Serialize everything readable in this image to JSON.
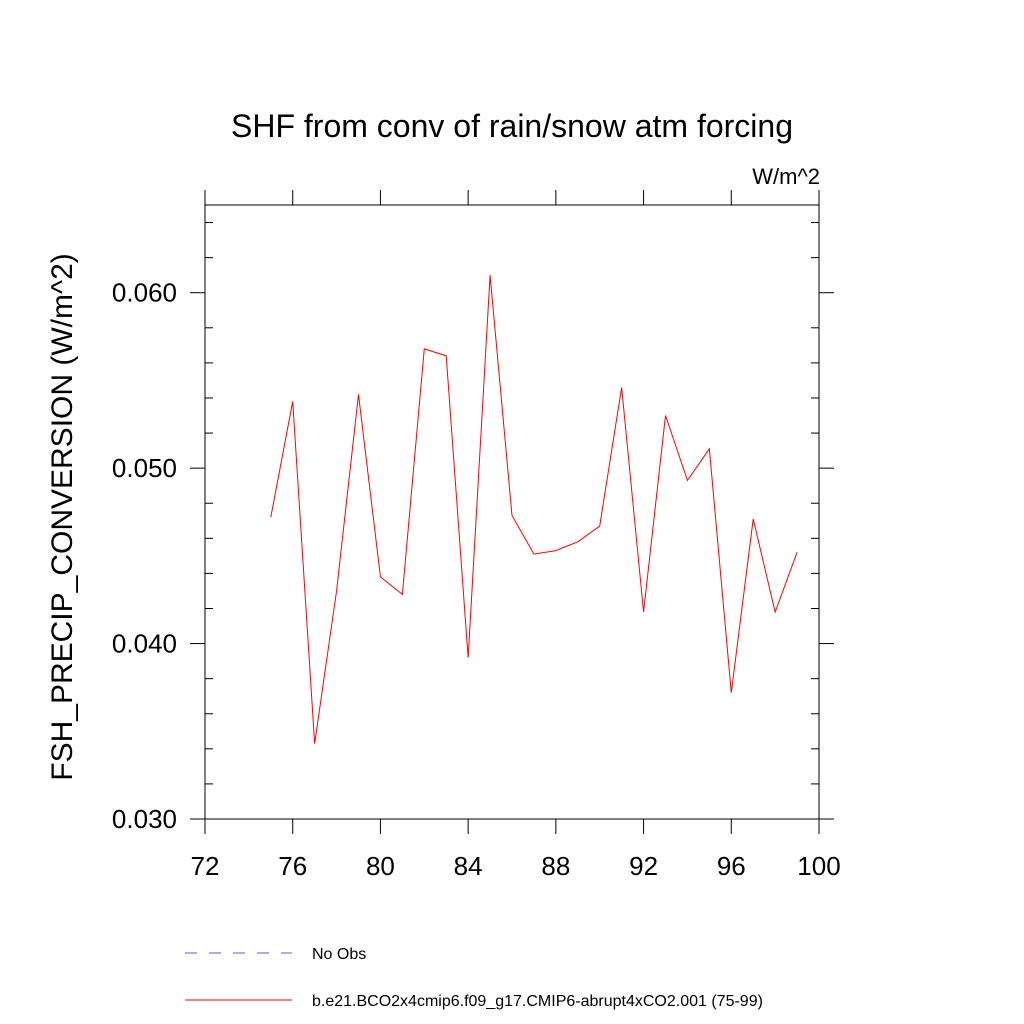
{
  "chart_data": {
    "type": "line",
    "title": "SHF from conv of rain/snow atm forcing",
    "units_label": "W/m^2",
    "xlabel": "",
    "ylabel": "FSH_PRECIP_CONVERSION  (W/m^2)",
    "xlim": [
      72,
      100
    ],
    "ylim": [
      0.03,
      0.065
    ],
    "x_ticks": [
      72,
      76,
      80,
      84,
      88,
      92,
      96,
      100
    ],
    "x_tick_labels": [
      "72",
      "76",
      "80",
      "84",
      "88",
      "92",
      "96",
      "100"
    ],
    "y_ticks": [
      0.03,
      0.04,
      0.05,
      0.06
    ],
    "y_tick_labels": [
      "0.030",
      "0.040",
      "0.050",
      "0.060"
    ],
    "grid": false,
    "legend_position": "bottom",
    "series": [
      {
        "name": "No Obs",
        "color": "#6a5acd",
        "style": "dashed",
        "x": [],
        "values": []
      },
      {
        "name": "b.e21.BCO2x4cmip6.f09_g17.CMIP6-abrupt4xCO2.001 (75-99)",
        "color": "#ff0000",
        "style": "solid",
        "x": [
          75,
          76,
          77,
          78,
          79,
          80,
          81,
          82,
          83,
          84,
          85,
          86,
          87,
          88,
          89,
          90,
          91,
          92,
          93,
          94,
          95,
          96,
          97,
          98,
          99
        ],
        "values": [
          0.0472,
          0.0538,
          0.0343,
          0.043,
          0.0542,
          0.0438,
          0.0428,
          0.0568,
          0.0564,
          0.0392,
          0.061,
          0.0473,
          0.0451,
          0.0453,
          0.0458,
          0.0467,
          0.0546,
          0.0418,
          0.053,
          0.0493,
          0.0511,
          0.0372,
          0.0471,
          0.0418,
          0.0452
        ]
      }
    ]
  }
}
